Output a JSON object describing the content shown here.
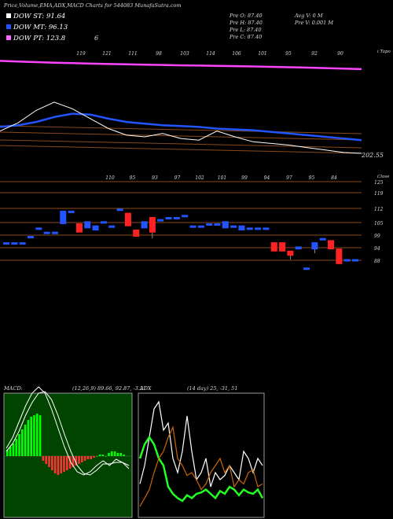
{
  "title": "Price,Volume,EMA,ADX,MACD Charts for 544083 MunafaSutra.com",
  "legend": [
    {
      "label": "DOW ST: 91.64",
      "color": "#ffffff"
    },
    {
      "label": "DOW MT: 96.13",
      "color": "#2255ff"
    },
    {
      "label": "DOW PT: 123.8",
      "color": "#ff66ff"
    }
  ],
  "legend_count": "6",
  "ohlc": {
    "open": "Pre O: 87.40",
    "high": "Pre H: 87.40",
    "low": "Pre L: 87.40",
    "close": "Pre C: 87.40",
    "avg_volume": "Avg V: 0 M",
    "pre_volume": "Pre V: 0.001 M"
  },
  "colors": {
    "up": "#2255ff",
    "down": "#ff2222",
    "macd_pos": "#00ff00",
    "macd_neg": "#ff3333",
    "adx_plus": "#22ff22",
    "adx_minus": "#cc6600",
    "band": "#8a4a1a"
  },
  "chart_data": [
    {
      "type": "line",
      "title": "EMA",
      "right_label": "202.55",
      "top_labels": [
        "119",
        "121",
        "111",
        "98",
        "103",
        "114",
        "106",
        "101",
        "95",
        "92",
        "90"
      ],
      "corner_label": "i Tapo",
      "series": [
        {
          "name": "DOW PT",
          "values": [
            200,
            199.2,
            198.5,
            197.8,
            197.2,
            196.7,
            196.2,
            195.8,
            195.4,
            195.0,
            194.6,
            194.3,
            194.0,
            193.6,
            193.2,
            192.8,
            192.3,
            191.8,
            191.2,
            190.6,
            190.0
          ]
        },
        {
          "name": "DOW MT",
          "values": [
            120,
            122,
            126,
            132,
            136,
            135,
            130,
            126,
            124,
            122,
            121,
            120,
            118,
            117,
            116,
            114,
            112,
            110,
            108,
            106,
            104
          ]
        },
        {
          "name": "DOW ST",
          "values": [
            115,
            125,
            140,
            150,
            142,
            130,
            118,
            110,
            108,
            112,
            106,
            104,
            115,
            108,
            102,
            100,
            98,
            95,
            92,
            89,
            88
          ]
        }
      ]
    },
    {
      "type": "bar",
      "title": "Price",
      "top_labels": [
        "110",
        "95",
        "93",
        "97",
        "102",
        "101",
        "99",
        "94",
        "97",
        "95",
        "84"
      ],
      "corner_label": "Close",
      "y_ticks": [
        "125",
        "119",
        "112",
        "105",
        "99",
        "94",
        "88"
      ],
      "candles": [
        {
          "o": 96,
          "c": 96,
          "h": 96,
          "l": 96
        },
        {
          "o": 96,
          "c": 96,
          "h": 96,
          "l": 96
        },
        {
          "o": 96,
          "c": 96,
          "h": 96,
          "l": 96
        },
        {
          "o": 99,
          "c": 99,
          "h": 99,
          "l": 99
        },
        {
          "o": 103,
          "c": 103,
          "h": 103,
          "l": 103
        },
        {
          "o": 101,
          "c": 101,
          "h": 101,
          "l": 101
        },
        {
          "o": 101,
          "c": 101,
          "h": 101,
          "l": 101
        },
        {
          "o": 105,
          "c": 111,
          "h": 111,
          "l": 105
        },
        {
          "o": 111,
          "c": 111,
          "h": 111,
          "l": 111
        },
        {
          "o": 105,
          "c": 101,
          "h": 105,
          "l": 101
        },
        {
          "o": 103,
          "c": 106,
          "h": 106,
          "l": 103
        },
        {
          "o": 102,
          "c": 104,
          "h": 104,
          "l": 102
        },
        {
          "o": 106,
          "c": 106,
          "h": 106,
          "l": 106
        },
        {
          "o": 104,
          "c": 104,
          "h": 104,
          "l": 104
        },
        {
          "o": 112,
          "c": 112,
          "h": 112,
          "l": 112
        },
        {
          "o": 110,
          "c": 104,
          "h": 110,
          "l": 104
        },
        {
          "o": 102,
          "c": 99,
          "h": 102,
          "l": 99
        },
        {
          "o": 103,
          "c": 106,
          "h": 106,
          "l": 103
        },
        {
          "o": 108,
          "c": 101,
          "h": 108,
          "l": 98
        },
        {
          "o": 107,
          "c": 107,
          "h": 107,
          "l": 107
        },
        {
          "o": 108,
          "c": 108,
          "h": 108,
          "l": 108
        },
        {
          "o": 108,
          "c": 108,
          "h": 108,
          "l": 108
        },
        {
          "o": 109,
          "c": 109,
          "h": 109,
          "l": 109
        },
        {
          "o": 104,
          "c": 104,
          "h": 104,
          "l": 104
        },
        {
          "o": 104,
          "c": 104,
          "h": 104,
          "l": 104
        },
        {
          "o": 105,
          "c": 105,
          "h": 105,
          "l": 105
        },
        {
          "o": 105,
          "c": 105,
          "h": 105,
          "l": 105
        },
        {
          "o": 103,
          "c": 106,
          "h": 106,
          "l": 103
        },
        {
          "o": 104,
          "c": 104,
          "h": 104,
          "l": 104
        },
        {
          "o": 102,
          "c": 104,
          "h": 104,
          "l": 102
        },
        {
          "o": 103,
          "c": 103,
          "h": 103,
          "l": 103
        },
        {
          "o": 103,
          "c": 103,
          "h": 103,
          "l": 103
        },
        {
          "o": 103,
          "c": 103,
          "h": 103,
          "l": 103
        },
        {
          "o": 96,
          "c": 92,
          "h": 96,
          "l": 92
        },
        {
          "o": 96,
          "c": 92,
          "h": 96,
          "l": 92
        },
        {
          "o": 92,
          "c": 90,
          "h": 92,
          "l": 88
        },
        {
          "o": 93,
          "c": 94,
          "h": 94,
          "l": 93
        },
        {
          "o": 84,
          "c": 84,
          "h": 84,
          "l": 84
        },
        {
          "o": 93,
          "c": 96,
          "h": 96,
          "l": 91
        },
        {
          "o": 98,
          "c": 98,
          "h": 98,
          "l": 98
        },
        {
          "o": 97,
          "c": 93,
          "h": 97,
          "l": 93
        },
        {
          "o": 93,
          "c": 86,
          "h": 93,
          "l": 86
        },
        {
          "o": 88,
          "c": 88,
          "h": 88,
          "l": 88
        },
        {
          "o": 88,
          "c": 88,
          "h": 88,
          "l": 88
        }
      ]
    },
    {
      "type": "bar",
      "title": "MACD",
      "label": "MACD:",
      "params": "(12,26,9) 89.66, 92.87, -3.21",
      "values": [
        4,
        6,
        8,
        11,
        14,
        17,
        20,
        23,
        25,
        26,
        27,
        26,
        -3,
        -5,
        -7,
        -9,
        -11,
        -12,
        -11,
        -10,
        -9,
        -8,
        -7,
        -6,
        -5,
        -4,
        -3,
        -2,
        -2,
        -1,
        0,
        1,
        1,
        0,
        2,
        3,
        3,
        2,
        2,
        1
      ],
      "series": [
        {
          "name": "MACD",
          "values": [
            5,
            12,
            22,
            32,
            40,
            44,
            40,
            30,
            18,
            6,
            -4,
            -10,
            -12,
            -10,
            -6,
            -3,
            -6,
            -2,
            -4,
            -8
          ]
        },
        {
          "name": "Signal",
          "values": [
            3,
            8,
            16,
            26,
            34,
            40,
            41,
            36,
            26,
            14,
            3,
            -6,
            -11,
            -12,
            -9,
            -5,
            -5,
            -4,
            -4,
            -6
          ]
        }
      ]
    },
    {
      "type": "line",
      "title": "ADX",
      "label": "ADX",
      "params": "(14 day) 25, -31, 51",
      "series": [
        {
          "name": "ADX",
          "values": [
            22,
            35,
            55,
            75,
            80,
            60,
            65,
            40,
            30,
            45,
            70,
            45,
            25,
            30,
            40,
            20,
            30,
            25,
            28,
            35,
            30,
            25,
            45,
            40,
            30,
            40,
            35
          ]
        },
        {
          "name": "+DI",
          "values": [
            40,
            50,
            55,
            50,
            40,
            35,
            20,
            15,
            12,
            10,
            14,
            12,
            15,
            16,
            18,
            15,
            12,
            17,
            15,
            20,
            18,
            14,
            18,
            16,
            15,
            18,
            12
          ]
        },
        {
          "name": "-DI",
          "values": [
            6,
            12,
            18,
            30,
            40,
            45,
            55,
            62,
            40,
            35,
            28,
            30,
            25,
            18,
            22,
            30,
            35,
            40,
            30,
            35,
            20,
            25,
            22,
            30,
            32,
            20,
            22
          ]
        }
      ]
    }
  ]
}
